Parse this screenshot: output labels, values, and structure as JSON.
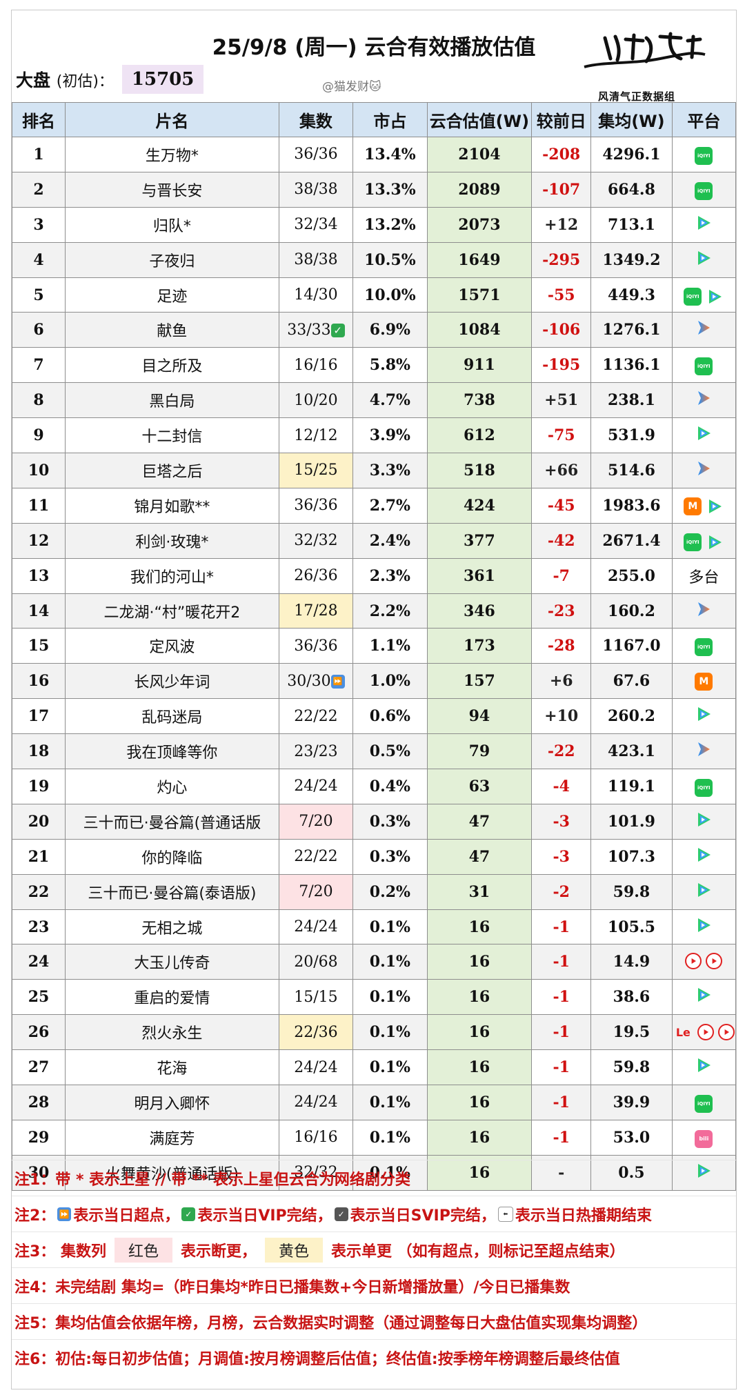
{
  "header": {
    "title": "25/9/8 (周一) 云合有效播放估值",
    "market_label": "大盘",
    "market_sub": "(初估)：",
    "market_value": "15705",
    "handle": "@猫发财🐱",
    "brand_name": "榜上有名",
    "brand_sub": "风清气正数据组"
  },
  "columns": [
    "排名",
    "片名",
    "集数",
    "市占",
    "云合估值(W)",
    "较前日",
    "集均(W)",
    "平台"
  ],
  "rows": [
    {
      "rank": "1",
      "name": "生万物*",
      "eps": "36/36",
      "share": "13.4%",
      "est": "2104",
      "diff": "-208",
      "avg": "4296.1",
      "plat": [
        "iqiyi"
      ]
    },
    {
      "rank": "2",
      "name": "与晋长安",
      "eps": "38/38",
      "share": "13.3%",
      "est": "2089",
      "diff": "-107",
      "avg": "664.8",
      "plat": [
        "iqiyi"
      ]
    },
    {
      "rank": "3",
      "name": "归队*",
      "eps": "32/34",
      "share": "13.2%",
      "est": "2073",
      "diff": "+12",
      "avg": "713.1",
      "plat": [
        "tencent"
      ]
    },
    {
      "rank": "4",
      "name": "子夜归",
      "eps": "38/38",
      "share": "10.5%",
      "est": "1649",
      "diff": "-295",
      "avg": "1349.2",
      "plat": [
        "tencent"
      ]
    },
    {
      "rank": "5",
      "name": "足迹",
      "eps": "14/30",
      "share": "10.0%",
      "est": "1571",
      "diff": "-55",
      "avg": "449.3",
      "plat": [
        "iqiyi",
        "tencent"
      ]
    },
    {
      "rank": "6",
      "name": "献鱼",
      "eps": "33/33",
      "eps_badge": "vip",
      "share": "6.9%",
      "est": "1084",
      "diff": "-106",
      "avg": "1276.1",
      "plat": [
        "youku"
      ]
    },
    {
      "rank": "7",
      "name": "目之所及",
      "eps": "16/16",
      "share": "5.8%",
      "est": "911",
      "diff": "-195",
      "avg": "1136.1",
      "plat": [
        "iqiyi"
      ]
    },
    {
      "rank": "8",
      "name": "黑白局",
      "eps": "10/20",
      "share": "4.7%",
      "est": "738",
      "diff": "+51",
      "avg": "238.1",
      "plat": [
        "youku"
      ]
    },
    {
      "rank": "9",
      "name": "十二封信",
      "eps": "12/12",
      "share": "3.9%",
      "est": "612",
      "diff": "-75",
      "avg": "531.9",
      "plat": [
        "tencent"
      ]
    },
    {
      "rank": "10",
      "name": "巨塔之后",
      "eps": "15/25",
      "eps_bg": "yellow",
      "share": "3.3%",
      "est": "518",
      "diff": "+66",
      "avg": "514.6",
      "plat": [
        "youku"
      ]
    },
    {
      "rank": "11",
      "name": "锦月如歌**",
      "eps": "36/36",
      "share": "2.7%",
      "est": "424",
      "diff": "-45",
      "avg": "1983.6",
      "plat": [
        "mango",
        "tencent"
      ]
    },
    {
      "rank": "12",
      "name": "利剑·玫瑰*",
      "eps": "32/32",
      "share": "2.4%",
      "est": "377",
      "diff": "-42",
      "avg": "2671.4",
      "plat": [
        "iqiyi",
        "tencent"
      ]
    },
    {
      "rank": "13",
      "name": "我们的河山*",
      "eps": "26/36",
      "share": "2.3%",
      "est": "361",
      "diff": "-7",
      "avg": "255.0",
      "plat_text": "多台"
    },
    {
      "rank": "14",
      "name": "二龙湖·“村”暖花开2",
      "eps": "17/28",
      "eps_bg": "yellow",
      "share": "2.2%",
      "est": "346",
      "diff": "-23",
      "avg": "160.2",
      "plat": [
        "youku"
      ]
    },
    {
      "rank": "15",
      "name": "定风波",
      "eps": "36/36",
      "share": "1.1%",
      "est": "173",
      "diff": "-28",
      "avg": "1167.0",
      "plat": [
        "iqiyi"
      ]
    },
    {
      "rank": "16",
      "name": "长风少年词",
      "eps": "30/30",
      "eps_badge": "ff",
      "share": "1.0%",
      "est": "157",
      "diff": "+6",
      "avg": "67.6",
      "plat": [
        "mango"
      ]
    },
    {
      "rank": "17",
      "name": "乱码迷局",
      "eps": "22/22",
      "share": "0.6%",
      "est": "94",
      "diff": "+10",
      "avg": "260.2",
      "plat": [
        "tencent"
      ]
    },
    {
      "rank": "18",
      "name": "我在顶峰等你",
      "eps": "23/23",
      "share": "0.5%",
      "est": "79",
      "diff": "-22",
      "avg": "423.1",
      "plat": [
        "youku"
      ]
    },
    {
      "rank": "19",
      "name": "灼心",
      "eps": "24/24",
      "share": "0.4%",
      "est": "63",
      "diff": "-4",
      "avg": "119.1",
      "plat": [
        "iqiyi"
      ]
    },
    {
      "rank": "20",
      "name": "三十而已·曼谷篇(普通话版",
      "eps": "7/20",
      "eps_bg": "pink",
      "share": "0.3%",
      "est": "47",
      "diff": "-3",
      "avg": "101.9",
      "plat": [
        "tencent"
      ]
    },
    {
      "rank": "21",
      "name": "你的降临",
      "eps": "22/22",
      "share": "0.3%",
      "est": "47",
      "diff": "-3",
      "avg": "107.3",
      "plat": [
        "tencent"
      ]
    },
    {
      "rank": "22",
      "name": "三十而已·曼谷篇(泰语版)",
      "eps": "7/20",
      "eps_bg": "pink",
      "share": "0.2%",
      "est": "31",
      "diff": "-2",
      "avg": "59.8",
      "plat": [
        "tencent"
      ]
    },
    {
      "rank": "23",
      "name": "无相之城",
      "eps": "24/24",
      "share": "0.1%",
      "est": "16",
      "diff": "-1",
      "avg": "105.5",
      "plat": [
        "tencent"
      ]
    },
    {
      "rank": "24",
      "name": "大玉儿传奇",
      "eps": "20/68",
      "share": "0.1%",
      "est": "16",
      "diff": "-1",
      "avg": "14.9",
      "plat": [
        "cctv",
        "cctv"
      ]
    },
    {
      "rank": "25",
      "name": "重启的爱情",
      "eps": "15/15",
      "share": "0.1%",
      "est": "16",
      "diff": "-1",
      "avg": "38.6",
      "plat": [
        "tencent"
      ]
    },
    {
      "rank": "26",
      "name": "烈火永生",
      "eps": "22/36",
      "eps_bg": "yellow",
      "share": "0.1%",
      "est": "16",
      "diff": "-1",
      "avg": "19.5",
      "plat": [
        "le",
        "cctv",
        "cctv"
      ]
    },
    {
      "rank": "27",
      "name": "花海",
      "eps": "24/24",
      "share": "0.1%",
      "est": "16",
      "diff": "-1",
      "avg": "59.8",
      "plat": [
        "tencent"
      ]
    },
    {
      "rank": "28",
      "name": "明月入卿怀",
      "eps": "24/24",
      "share": "0.1%",
      "est": "16",
      "diff": "-1",
      "avg": "39.9",
      "plat": [
        "iqiyi"
      ]
    },
    {
      "rank": "29",
      "name": "满庭芳",
      "eps": "16/16",
      "share": "0.1%",
      "est": "16",
      "diff": "-1",
      "avg": "53.0",
      "plat": [
        "bili"
      ]
    },
    {
      "rank": "30",
      "name": "火舞黄沙(普通话版)",
      "eps": "32/32",
      "share": "0.1%",
      "est": "16",
      "diff": "-",
      "avg": "0.5",
      "plat": [
        "tencent"
      ]
    }
  ],
  "platform_labels": {
    "iqiyi": "iQIYI",
    "mango": "M",
    "bili": "bili",
    "le": "Le"
  },
  "notes": {
    "n1": "注1：带 * 表示上星 // 带 ** 表示上星但云合为网络剧分类",
    "n2_a": "注2：",
    "n2_b": "表示当日超点，",
    "n2_c": "表示当日VIP完结，",
    "n2_d": "表示当日SVIP完结，",
    "n2_e": "表示当日热播期结束",
    "n3_a": "注3：  集数列",
    "n3_red": "红色",
    "n3_b": "表示断更，",
    "n3_yellow": "黄色",
    "n3_c": "表示单更 （如有超点，则标记至超点结束）",
    "n4": "注4：未完结剧 集均=（昨日集均*昨日已播集数+今日新增播放量）/今日已播集数",
    "n5": "注5：集均估值会依据年榜，月榜，云合数据实时调整（通过调整每日大盘估值实现集均调整）",
    "n6": "注6：初估:每日初步估值；月调值:按月榜调整后估值；终估值:按季榜年榜调整后最终估值"
  },
  "colors": {
    "header_bg": "#d4e4f3",
    "est_bg": "#e3f0d7",
    "negative": "#d01010",
    "note": "#c81414"
  }
}
